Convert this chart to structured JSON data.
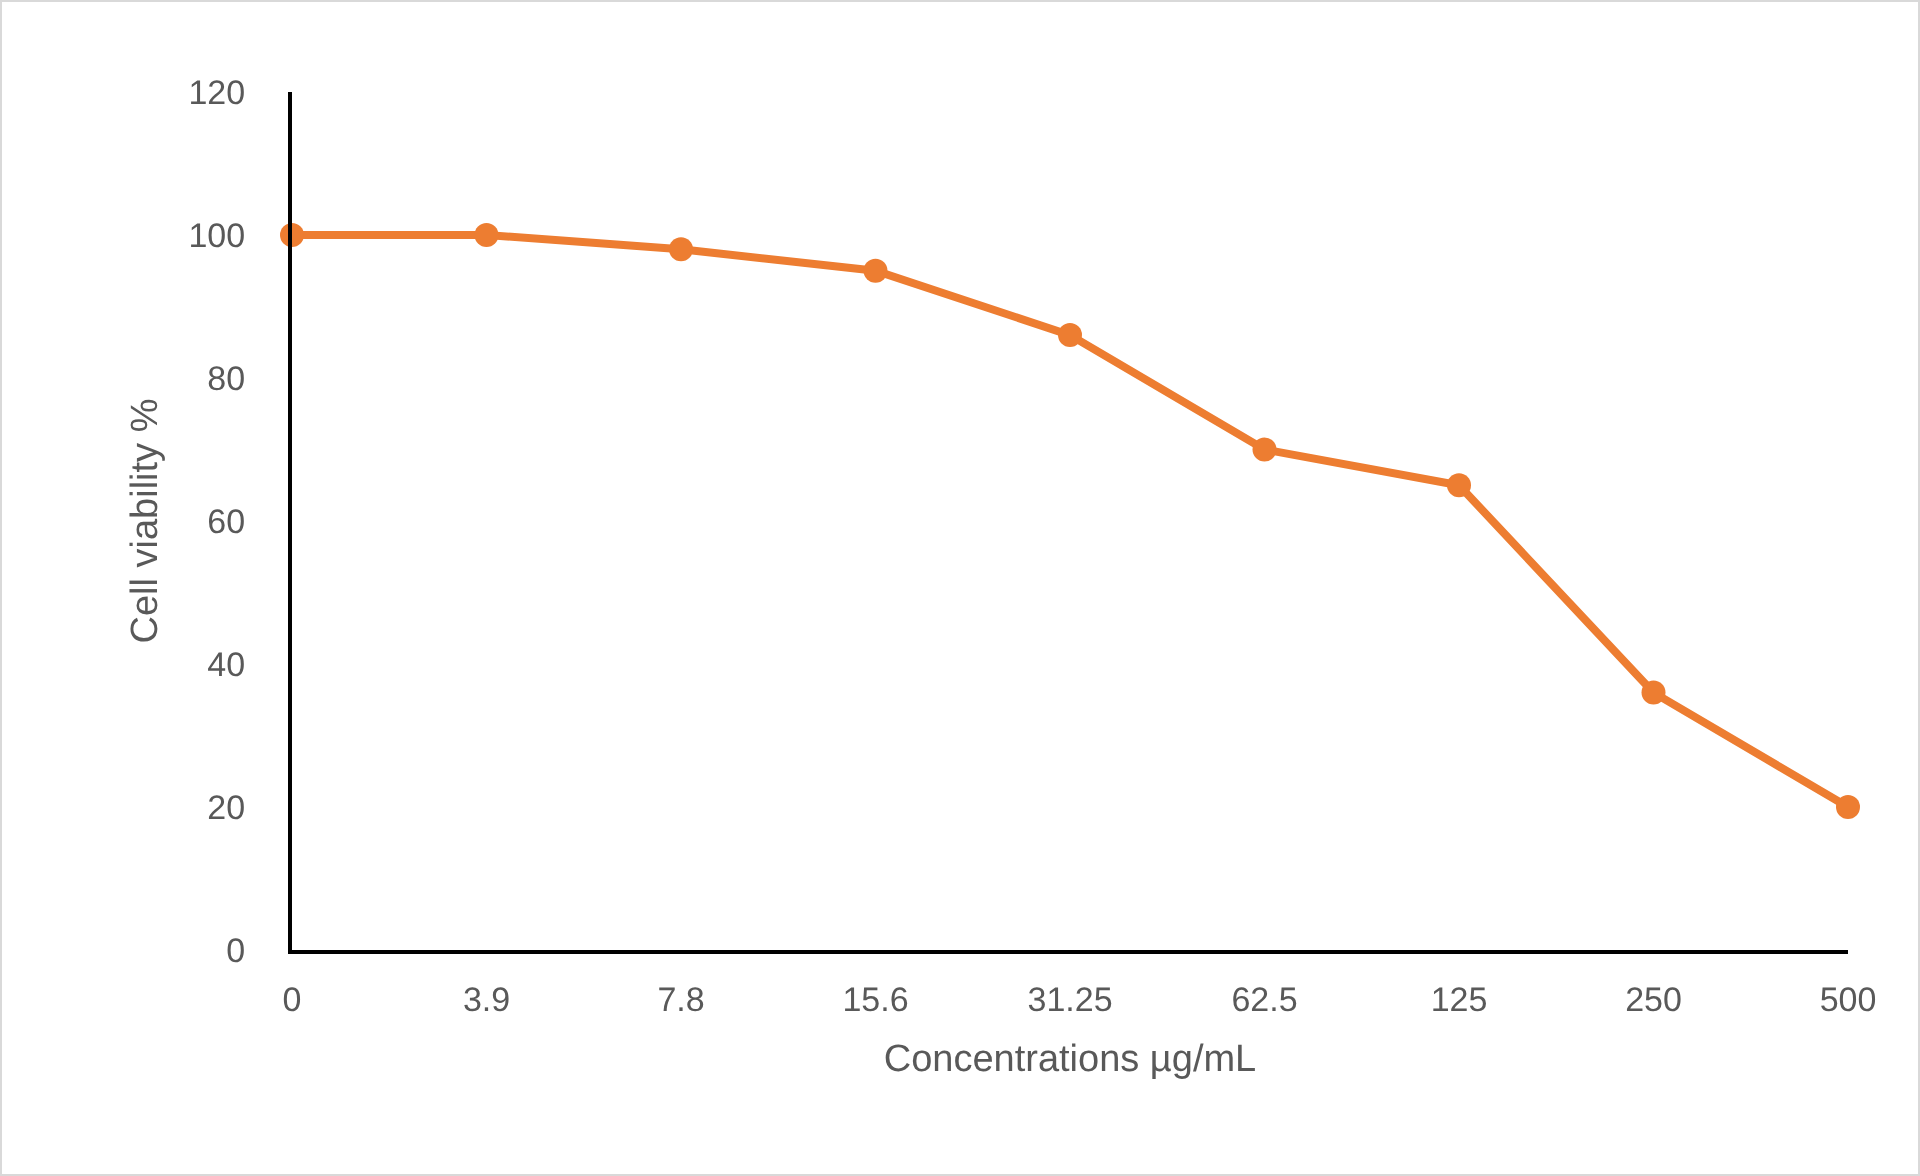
{
  "chart_data": {
    "type": "line",
    "xlabel": "Concentrations µg/mL",
    "ylabel": "Cell viability %",
    "categories": [
      "0",
      "3.9",
      "7.8",
      "15.6",
      "31.25",
      "62.5",
      "125",
      "250",
      "500"
    ],
    "series": [
      {
        "color": "#ed7d31",
        "values": [
          100,
          100,
          98,
          95,
          86,
          70,
          65,
          36,
          20
        ]
      }
    ],
    "ylim": [
      0,
      120
    ],
    "yticks": [
      0,
      20,
      40,
      60,
      80,
      100,
      120
    ],
    "grid": false,
    "marker": "circle",
    "line_style": "solid"
  }
}
